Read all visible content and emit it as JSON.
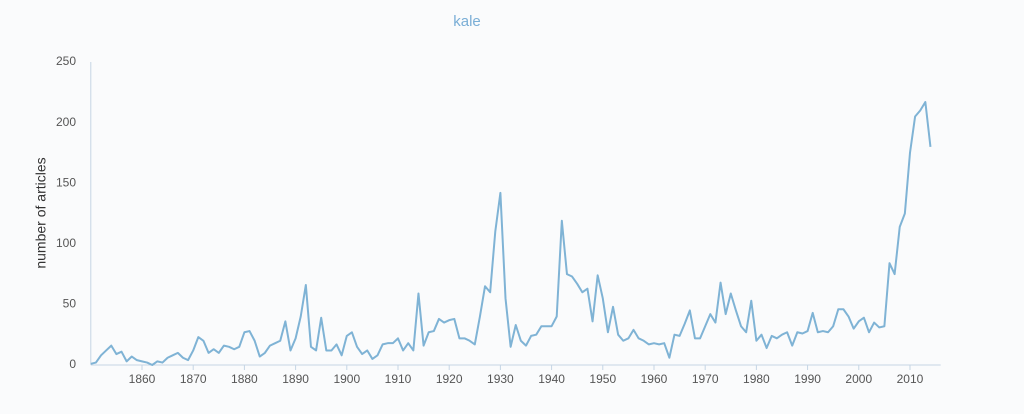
{
  "chart_data": {
    "type": "line",
    "title": "kale",
    "y_label": "number of articles",
    "x": [
      1850,
      1851,
      1852,
      1853,
      1854,
      1855,
      1856,
      1857,
      1858,
      1859,
      1860,
      1861,
      1862,
      1863,
      1864,
      1865,
      1866,
      1867,
      1868,
      1869,
      1870,
      1871,
      1872,
      1873,
      1874,
      1875,
      1876,
      1877,
      1878,
      1879,
      1880,
      1881,
      1882,
      1883,
      1884,
      1885,
      1886,
      1887,
      1888,
      1889,
      1890,
      1891,
      1892,
      1893,
      1894,
      1895,
      1896,
      1897,
      1898,
      1899,
      1900,
      1901,
      1902,
      1903,
      1904,
      1905,
      1906,
      1907,
      1908,
      1909,
      1910,
      1911,
      1912,
      1913,
      1914,
      1915,
      1916,
      1917,
      1918,
      1919,
      1920,
      1921,
      1922,
      1923,
      1924,
      1925,
      1926,
      1927,
      1928,
      1929,
      1930,
      1931,
      1932,
      1933,
      1934,
      1935,
      1936,
      1937,
      1938,
      1939,
      1940,
      1941,
      1942,
      1943,
      1944,
      1945,
      1946,
      1947,
      1948,
      1949,
      1950,
      1951,
      1952,
      1953,
      1954,
      1955,
      1956,
      1957,
      1958,
      1959,
      1960,
      1961,
      1962,
      1963,
      1964,
      1965,
      1966,
      1967,
      1968,
      1969,
      1970,
      1971,
      1972,
      1973,
      1974,
      1975,
      1976,
      1977,
      1978,
      1979,
      1980,
      1981,
      1982,
      1983,
      1984,
      1985,
      1986,
      1987,
      1988,
      1989,
      1990,
      1991,
      1992,
      1993,
      1994,
      1995,
      1996,
      1997,
      1998,
      1999,
      2000,
      2001,
      2002,
      2003,
      2004,
      2005,
      2006,
      2007,
      2008,
      2009,
      2010,
      2011,
      2012,
      2013,
      2014
    ],
    "series": [
      {
        "name": "kale",
        "color": "#7fb3d5",
        "values": [
          1,
          2,
          8,
          12,
          16,
          9,
          11,
          3,
          7,
          4,
          3,
          2,
          0,
          3,
          2,
          6,
          8,
          10,
          6,
          4,
          12,
          23,
          20,
          10,
          13,
          10,
          16,
          15,
          13,
          15,
          27,
          28,
          20,
          7,
          10,
          16,
          18,
          20,
          36,
          12,
          22,
          40,
          66,
          15,
          12,
          39,
          12,
          12,
          17,
          8,
          24,
          27,
          15,
          9,
          12,
          5,
          8,
          17,
          18,
          18,
          22,
          12,
          18,
          12,
          59,
          16,
          27,
          28,
          38,
          35,
          37,
          38,
          22,
          22,
          20,
          17,
          40,
          65,
          60,
          110,
          142,
          55,
          15,
          33,
          20,
          16,
          24,
          25,
          32,
          32,
          32,
          40,
          119,
          75,
          73,
          67,
          60,
          63,
          36,
          74,
          55,
          27,
          48,
          25,
          20,
          22,
          29,
          22,
          20,
          17,
          18,
          17,
          18,
          6,
          25,
          24,
          34,
          45,
          22,
          22,
          32,
          42,
          35,
          68,
          42,
          59,
          45,
          32,
          27,
          53,
          20,
          25,
          14,
          24,
          22,
          25,
          27,
          16,
          27,
          26,
          28,
          43,
          27,
          28,
          27,
          32,
          46,
          46,
          40,
          30,
          36,
          39,
          27,
          35,
          31,
          32,
          84,
          75,
          114,
          125,
          175,
          205,
          210,
          217,
          180
        ]
      }
    ],
    "xlim": [
      1850,
      2016
    ],
    "ylim": [
      0,
      250
    ],
    "xticks": [
      1860,
      1870,
      1880,
      1890,
      1900,
      1910,
      1920,
      1930,
      1940,
      1950,
      1960,
      1970,
      1980,
      1990,
      2000,
      2010
    ],
    "yticks": [
      0,
      50,
      100,
      150,
      200,
      250
    ]
  }
}
